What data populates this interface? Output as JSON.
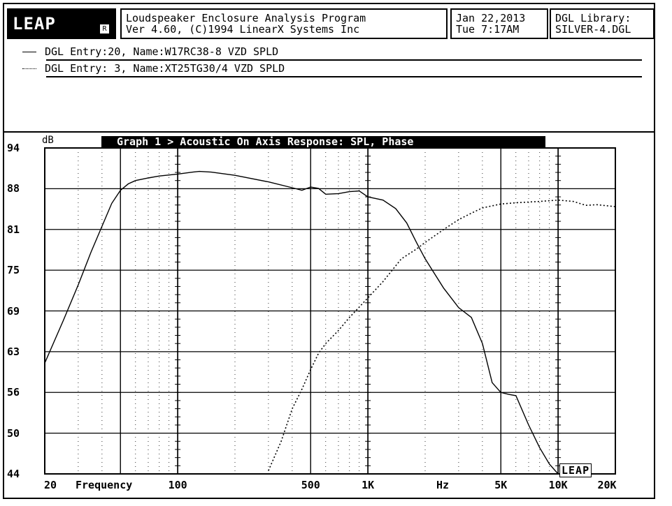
{
  "header": {
    "logo_text": "LEAP",
    "title_line1": "Loudspeaker Enclosure Analysis Program",
    "title_line2": "Ver 4.60,  (C)1994 LinearX Systems Inc",
    "date_line1": "Jan 22,2013",
    "date_line2": "Tue  7:17AM",
    "library_line1": "DGL Library:",
    "library_line2": "SILVER-4.DGL"
  },
  "entries": [
    {
      "text": "DGL Entry:20, Name:W17RC38-8 VZD SPLD",
      "style": "solid"
    },
    {
      "text": "DGL Entry: 3, Name:XT25TG30/4 VZD SPLD",
      "style": "dotted"
    }
  ],
  "graph": {
    "title": "Graph 1 > Acoustic On Axis Response: SPL, Phase",
    "y_unit": "dB",
    "x_label": "Frequency",
    "x_unit_label": "Hz",
    "brand": "LEAP"
  },
  "chart_data": {
    "type": "line",
    "title": "Graph 1 > Acoustic On Axis Response: SPL, Phase",
    "xlabel": "Frequency",
    "ylabel": "dB",
    "xscale": "log",
    "xlim": [
      20,
      20000
    ],
    "ylim": [
      44,
      94
    ],
    "yticks": [
      "94",
      "88",
      "81",
      "75",
      "69",
      "63",
      "56",
      "50",
      "44"
    ],
    "xticks": [
      {
        "label": "20",
        "value": 20
      },
      {
        "label": "100",
        "value": 100
      },
      {
        "label": "500",
        "value": 500
      },
      {
        "label": "1K",
        "value": 1000
      },
      {
        "label": "5K",
        "value": 5000
      },
      {
        "label": "10K",
        "value": 10000
      },
      {
        "label": "20K",
        "value": 20000
      }
    ],
    "grid": true,
    "series": [
      {
        "name": "DGL Entry:20, Name:W17RC38-8 VZD SPLD",
        "style": "solid",
        "color": "#000000",
        "points": [
          [
            20,
            61
          ],
          [
            25,
            67.5
          ],
          [
            30,
            73
          ],
          [
            35,
            78
          ],
          [
            40,
            82
          ],
          [
            45,
            85.5
          ],
          [
            50,
            87.5
          ],
          [
            55,
            88.5
          ],
          [
            60,
            89
          ],
          [
            70,
            89.4
          ],
          [
            80,
            89.7
          ],
          [
            100,
            90
          ],
          [
            120,
            90.3
          ],
          [
            130,
            90.4
          ],
          [
            150,
            90.3
          ],
          [
            200,
            89.8
          ],
          [
            300,
            88.8
          ],
          [
            400,
            87.9
          ],
          [
            450,
            87.5
          ],
          [
            500,
            88
          ],
          [
            550,
            87.8
          ],
          [
            600,
            86.9
          ],
          [
            700,
            87
          ],
          [
            800,
            87.3
          ],
          [
            900,
            87.4
          ],
          [
            1000,
            86.5
          ],
          [
            1200,
            86
          ],
          [
            1400,
            84.7
          ],
          [
            1600,
            82.5
          ],
          [
            1800,
            79.5
          ],
          [
            2000,
            77
          ],
          [
            2500,
            72.5
          ],
          [
            3000,
            69.5
          ],
          [
            3500,
            68
          ],
          [
            4000,
            64
          ],
          [
            4500,
            58
          ],
          [
            5000,
            56.5
          ],
          [
            5500,
            56.2
          ],
          [
            6000,
            56
          ],
          [
            7000,
            51.5
          ],
          [
            8000,
            48
          ],
          [
            9000,
            45.5
          ],
          [
            10000,
            44
          ]
        ]
      },
      {
        "name": "DGL Entry: 3, Name:XT25TG30/4 VZD SPLD",
        "style": "dotted",
        "color": "#000000",
        "points": [
          [
            300,
            44.5
          ],
          [
            350,
            49
          ],
          [
            400,
            54
          ],
          [
            450,
            57
          ],
          [
            500,
            60
          ],
          [
            550,
            62.5
          ],
          [
            600,
            64
          ],
          [
            700,
            66
          ],
          [
            800,
            68
          ],
          [
            1000,
            71
          ],
          [
            1200,
            73.5
          ],
          [
            1500,
            77
          ],
          [
            1800,
            78.5
          ],
          [
            2000,
            79.5
          ],
          [
            2500,
            81.5
          ],
          [
            3000,
            83
          ],
          [
            3500,
            84
          ],
          [
            4000,
            84.8
          ],
          [
            5000,
            85.4
          ],
          [
            6000,
            85.6
          ],
          [
            7000,
            85.7
          ],
          [
            8000,
            85.8
          ],
          [
            10000,
            86
          ],
          [
            12000,
            85.8
          ],
          [
            14000,
            85.2
          ],
          [
            16000,
            85.3
          ],
          [
            20000,
            85
          ]
        ]
      }
    ]
  }
}
